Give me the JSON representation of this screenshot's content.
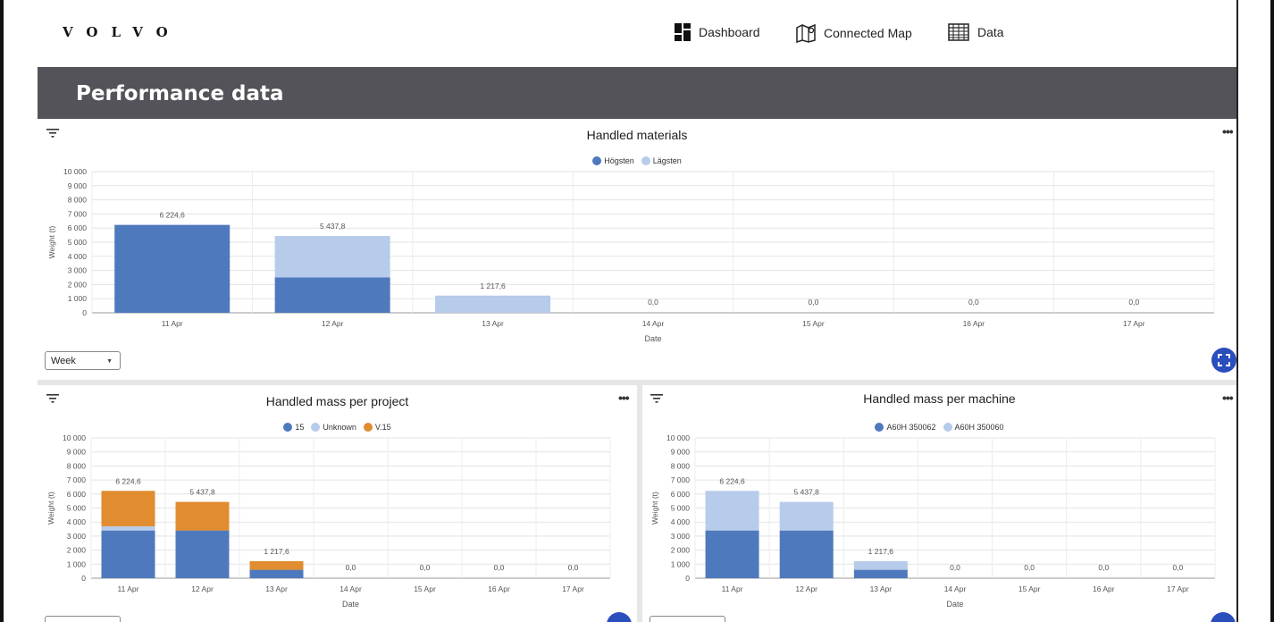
{
  "brand": {
    "logo": "VOLVO"
  },
  "nav": {
    "items": [
      {
        "label": "Dashboard",
        "icon": "dashboard-icon"
      },
      {
        "label": "Connected Map",
        "icon": "map-icon"
      },
      {
        "label": "Data",
        "icon": "table-icon"
      }
    ]
  },
  "page": {
    "title": "Performance data"
  },
  "panels": {
    "materials": {
      "title": "Handled materials",
      "period_select": "Week",
      "legend": [
        {
          "name": "Högsten",
          "color": "#4f79bd"
        },
        {
          "name": "Lägsten",
          "color": "#b7cbea"
        }
      ]
    },
    "project": {
      "title": "Handled mass per project",
      "legend": [
        {
          "name": "15",
          "color": "#4f79bd"
        },
        {
          "name": "Unknown",
          "color": "#b7cbea"
        },
        {
          "name": "V.15",
          "color": "#e08c2f"
        }
      ]
    },
    "machine": {
      "title": "Handled mass per machine",
      "legend": [
        {
          "name": "A60H 350062",
          "color": "#4f79bd"
        },
        {
          "name": "A60H 350060",
          "color": "#b7cbea"
        }
      ]
    }
  },
  "chart_data": [
    {
      "type": "bar",
      "stacked": true,
      "title": "Handled materials",
      "xlabel": "Date",
      "ylabel": "Weight (t)",
      "ylim": [
        0,
        10000
      ],
      "yticks": [
        "0",
        "1 000",
        "2 000",
        "3 000",
        "4 000",
        "5 000",
        "6 000",
        "7 000",
        "8 000",
        "9 000",
        "10 000"
      ],
      "categories": [
        "11 Apr",
        "12 Apr",
        "13 Apr",
        "14 Apr",
        "15 Apr",
        "16 Apr",
        "17 Apr"
      ],
      "series": [
        {
          "name": "Högsten",
          "color": "#4f79bd",
          "values": [
            6224.6,
            2500,
            0,
            0,
            0,
            0,
            0
          ]
        },
        {
          "name": "Lägsten",
          "color": "#b7cbea",
          "values": [
            0,
            2937.8,
            1217.6,
            0,
            0,
            0,
            0
          ]
        }
      ],
      "totals_labels": [
        "6 224,6",
        "5 437,8",
        "1 217,6",
        "0,0",
        "0,0",
        "0,0",
        "0,0"
      ]
    },
    {
      "type": "bar",
      "stacked": true,
      "title": "Handled mass per project",
      "xlabel": "Date",
      "ylabel": "Weight (t)",
      "ylim": [
        0,
        10000
      ],
      "yticks": [
        "0",
        "1 000",
        "2 000",
        "3 000",
        "4 000",
        "5 000",
        "6 000",
        "7 000",
        "8 000",
        "9 000",
        "10 000"
      ],
      "categories": [
        "11 Apr",
        "12 Apr",
        "13 Apr",
        "14 Apr",
        "15 Apr",
        "16 Apr",
        "17 Apr"
      ],
      "series": [
        {
          "name": "15",
          "color": "#4f79bd",
          "values": [
            3400,
            3400,
            600,
            0,
            0,
            0,
            0
          ]
        },
        {
          "name": "Unknown",
          "color": "#b7cbea",
          "values": [
            300,
            0,
            0,
            0,
            0,
            0,
            0
          ]
        },
        {
          "name": "V.15",
          "color": "#e08c2f",
          "values": [
            2524.6,
            2037.8,
            617.6,
            0,
            0,
            0,
            0
          ]
        }
      ],
      "totals_labels": [
        "6 224,6",
        "5 437,8",
        "1 217,6",
        "0,0",
        "0,0",
        "0,0",
        "0,0"
      ]
    },
    {
      "type": "bar",
      "stacked": true,
      "title": "Handled mass per machine",
      "xlabel": "Date",
      "ylabel": "Weight (t)",
      "ylim": [
        0,
        10000
      ],
      "yticks": [
        "0",
        "1 000",
        "2 000",
        "3 000",
        "4 000",
        "5 000",
        "6 000",
        "7 000",
        "8 000",
        "9 000",
        "10 000"
      ],
      "categories": [
        "11 Apr",
        "12 Apr",
        "13 Apr",
        "14 Apr",
        "15 Apr",
        "16 Apr",
        "17 Apr"
      ],
      "series": [
        {
          "name": "A60H 350062",
          "color": "#4f79bd",
          "values": [
            3400,
            3400,
            600,
            0,
            0,
            0,
            0
          ]
        },
        {
          "name": "A60H 350060",
          "color": "#b7cbea",
          "values": [
            2824.6,
            2037.8,
            617.6,
            0,
            0,
            0,
            0
          ]
        }
      ],
      "totals_labels": [
        "6 224,6",
        "5 437,8",
        "1 217,6",
        "0,0",
        "0,0",
        "0,0",
        "0,0"
      ]
    }
  ]
}
